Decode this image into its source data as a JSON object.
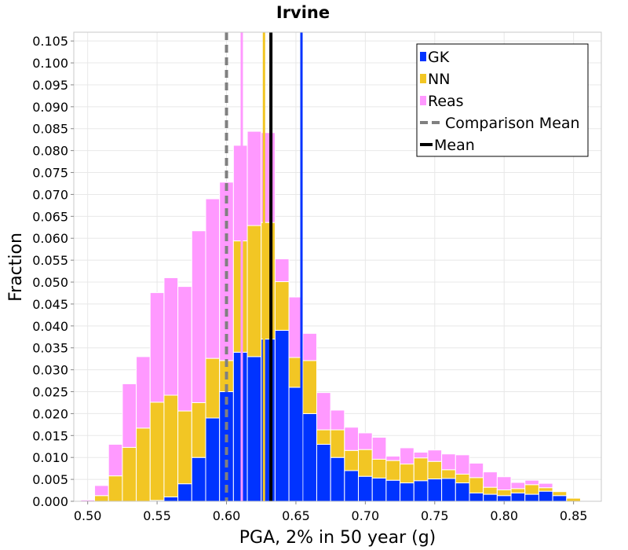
{
  "chart_data": {
    "type": "bar",
    "stacked": true,
    "title": "Irvine",
    "xlabel": "PGA, 2% in 50 year (g)",
    "ylabel": "Fraction",
    "xlim": [
      0.49,
      0.87
    ],
    "ylim": [
      0,
      0.107
    ],
    "bin_width": 0.01,
    "x_ticks": [
      0.5,
      0.55,
      0.6,
      0.65,
      0.7,
      0.75,
      0.8,
      0.85
    ],
    "x_tick_labels": [
      "0.50",
      "0.55",
      "0.60",
      "0.65",
      "0.70",
      "0.75",
      "0.80",
      "0.85"
    ],
    "y_ticks": [
      0,
      0.005,
      0.01,
      0.015,
      0.02,
      0.025,
      0.03,
      0.035,
      0.04,
      0.045,
      0.05,
      0.055,
      0.06,
      0.065,
      0.07,
      0.075,
      0.08,
      0.085,
      0.09,
      0.095,
      0.1,
      0.105
    ],
    "y_tick_labels": [
      "0.000",
      "0.005",
      "0.010",
      "0.015",
      "0.020",
      "0.025",
      "0.030",
      "0.035",
      "0.040",
      "0.045",
      "0.050",
      "0.055",
      "0.060",
      "0.065",
      "0.070",
      "0.075",
      "0.080",
      "0.085",
      "0.090",
      "0.095",
      "0.100",
      "0.105"
    ],
    "bins_x": [
      0.5,
      0.51,
      0.52,
      0.53,
      0.54,
      0.55,
      0.56,
      0.57,
      0.58,
      0.59,
      0.6,
      0.61,
      0.62,
      0.63,
      0.64,
      0.65,
      0.66,
      0.67,
      0.68,
      0.69,
      0.7,
      0.71,
      0.72,
      0.73,
      0.74,
      0.75,
      0.76,
      0.77,
      0.78,
      0.79,
      0.8,
      0.81,
      0.82,
      0.83,
      0.84,
      0.85
    ],
    "series": [
      {
        "name": "GK",
        "color": "#0033ff",
        "values": [
          0,
          0,
          0,
          0,
          0,
          0.0002,
          0.001,
          0.004,
          0.01,
          0.019,
          0.025,
          0.034,
          0.033,
          0.037,
          0.039,
          0.026,
          0.02,
          0.013,
          0.01,
          0.007,
          0.0057,
          0.0053,
          0.0048,
          0.0042,
          0.0047,
          0.0051,
          0.0052,
          0.0042,
          0.0019,
          0.0016,
          0.0013,
          0.0019,
          0.0016,
          0.0023,
          0.0013,
          0
        ]
      },
      {
        "name": "NN",
        "color": "#f2c624",
        "values": [
          0,
          0.0013,
          0.0058,
          0.0123,
          0.0167,
          0.0224,
          0.0232,
          0.0166,
          0.0125,
          0.0136,
          0.0071,
          0.0254,
          0.0299,
          0.0266,
          0.0111,
          0.0068,
          0.0121,
          0.0033,
          0.0063,
          0.0046,
          0.0061,
          0.0043,
          0.0045,
          0.0043,
          0.0052,
          0.004,
          0.002,
          0.002,
          0.0035,
          0.0016,
          0.0013,
          0.001,
          0.0022,
          0.0008,
          0.0009,
          0.0007
        ]
      },
      {
        "name": "Reas",
        "color": "#ff99ff",
        "values": [
          0.0003,
          0.0023,
          0.0072,
          0.0145,
          0.0163,
          0.025,
          0.0268,
          0.0284,
          0.0392,
          0.0364,
          0.0407,
          0.0218,
          0.0215,
          0.0205,
          0.0052,
          0.0138,
          0.0062,
          0.0085,
          0.0045,
          0.0053,
          0.0038,
          0.005,
          0.001,
          0.0037,
          0.0013,
          0.0026,
          0.0036,
          0.0044,
          0.0033,
          0.0035,
          0.003,
          0.0014,
          0.001,
          0.001,
          0,
          0
        ]
      }
    ],
    "comparison_mean": {
      "label": "Comparison Mean",
      "x": 0.6,
      "color": "#808080"
    },
    "mean": {
      "label": "Mean",
      "x": 0.632,
      "color": "#000000"
    },
    "series_means": [
      {
        "series": "NN",
        "x": 0.627,
        "color": "#f2c624"
      },
      {
        "series": "GK",
        "x": 0.654,
        "color": "#0033ff"
      },
      {
        "series": "Reas",
        "x": 0.611,
        "color": "#ff99ff"
      }
    ],
    "grid": true,
    "legend_position": "top-right",
    "legend": [
      {
        "label": "GK",
        "kind": "patch",
        "color": "#0033ff"
      },
      {
        "label": "NN",
        "kind": "patch",
        "color": "#f2c624"
      },
      {
        "label": "Reas",
        "kind": "patch",
        "color": "#ff99ff"
      },
      {
        "label": "Comparison Mean",
        "kind": "dashed-line",
        "color": "#808080"
      },
      {
        "label": "Mean",
        "kind": "line",
        "color": "#000000"
      }
    ]
  }
}
